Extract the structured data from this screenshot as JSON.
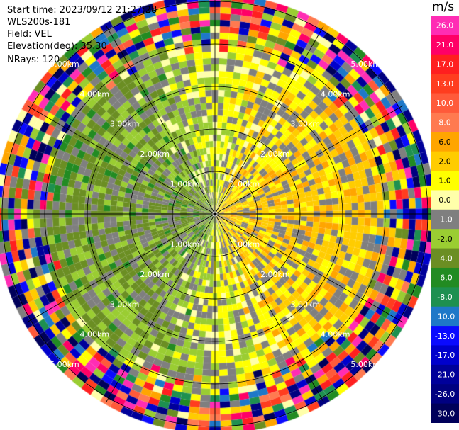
{
  "header": {
    "start_time": "Start time: 2023/09/12 21:27:28",
    "instrument": "WLS200s-181",
    "field": "Field: VEL",
    "elevation": "Elevation(deg): 35.30",
    "nrays": "NRays: 120"
  },
  "colorbar": {
    "unit": "m/s",
    "ticks": [
      "26.0",
      "21.0",
      "17.0",
      "13.0",
      "10.0",
      "8.0",
      "6.0",
      "2.0",
      "1.0",
      "0.0",
      "-1.0",
      "-2.0",
      "-4.0",
      "-6.0",
      "-8.0",
      "-10.0",
      "-13.0",
      "-17.0",
      "-21.0",
      "-26.0",
      "-30.0"
    ],
    "colors": [
      "#ff2db4",
      "#ff0066",
      "#ff1f1f",
      "#ff3d1f",
      "#ff5a3a",
      "#ff7a50",
      "#ffa500",
      "#ffcc00",
      "#ffff00",
      "#ffffaa",
      "#7f7f7f",
      "#9acd32",
      "#6b8e23",
      "#228b22",
      "#1e9050",
      "#1e78c8",
      "#0a0aff",
      "#0000cc",
      "#00009a",
      "#000080",
      "#00005a"
    ]
  },
  "chart_data": {
    "type": "ppi",
    "field": "VEL",
    "units": "m/s",
    "nrays": 120,
    "elevation_deg": 35.3,
    "range_rings_km": [
      1.0,
      2.0,
      3.0,
      4.0,
      5.0
    ],
    "range_ring_labels": [
      "1.00km",
      "2.00km",
      "3.00km",
      "4.00km",
      "5.00km"
    ],
    "velocity_scale_ticks": [
      26.0,
      21.0,
      17.0,
      13.0,
      10.0,
      8.0,
      6.0,
      2.0,
      1.0,
      0.0,
      -1.0,
      -2.0,
      -4.0,
      -6.0,
      -8.0,
      -10.0,
      -13.0,
      -17.0,
      -21.0,
      -26.0,
      -30.0
    ],
    "vmin": -30.0,
    "vmax": 30.0,
    "pattern": {
      "description": "positive (yellow/orange) velocities on the east side, negative (olive/green) velocities on the west side; outer range gates noisy",
      "noise_start_km": 3.7,
      "max_range_km": 5.1
    }
  }
}
